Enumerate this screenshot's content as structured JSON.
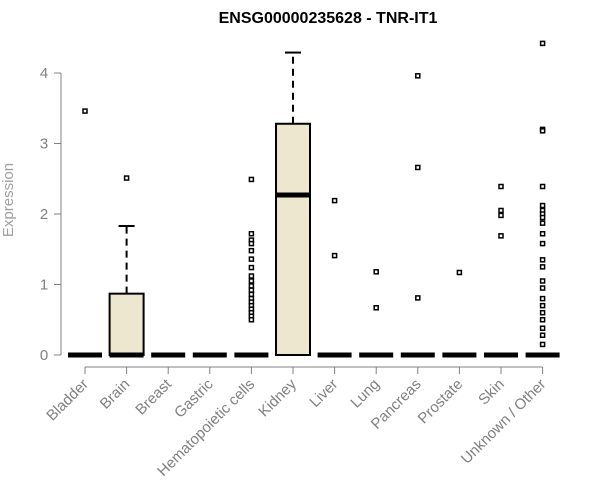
{
  "chart_data": {
    "type": "boxplot",
    "title": "ENSG00000235628 - TNR-IT1",
    "ylabel": "Expression",
    "xlabel": "",
    "ylim": [
      0,
      4.45
    ],
    "yticks": [
      0,
      1,
      2,
      3,
      4
    ],
    "grid": false,
    "legend": "none",
    "box_fill": "#ede7cf",
    "box_stroke": "#000000",
    "categories": [
      "Bladder",
      "Brain",
      "Breast",
      "Gastric",
      "Hematopoietic cells",
      "Kidney",
      "Liver",
      "Lung",
      "Pancreas",
      "Prostate",
      "Skin",
      "Unknown / Other"
    ],
    "boxes": [
      {
        "category": "Bladder",
        "q1": 0,
        "median": 0,
        "q3": 0,
        "whisker_low": 0,
        "whisker_high": 0,
        "outliers": [
          3.46
        ]
      },
      {
        "category": "Brain",
        "q1": 0,
        "median": 0,
        "q3": 0.87,
        "whisker_low": 0,
        "whisker_high": 1.83,
        "outliers": [
          2.51
        ]
      },
      {
        "category": "Breast",
        "q1": 0,
        "median": 0,
        "q3": 0,
        "whisker_low": 0,
        "whisker_high": 0,
        "outliers": []
      },
      {
        "category": "Gastric",
        "q1": 0,
        "median": 0,
        "q3": 0,
        "whisker_low": 0,
        "whisker_high": 0,
        "outliers": []
      },
      {
        "category": "Hematopoietic cells",
        "q1": 0,
        "median": 0,
        "q3": 0,
        "whisker_low": 0,
        "whisker_high": 0,
        "outliers": [
          2.49,
          1.72,
          1.63,
          1.58,
          1.48,
          1.36,
          1.24,
          1.12,
          1.05,
          0.98,
          0.92,
          0.86,
          0.8,
          0.75,
          0.7,
          0.65,
          0.6,
          0.55,
          0.5
        ]
      },
      {
        "category": "Kidney",
        "q1": 0,
        "median": 2.27,
        "q3": 3.28,
        "whisker_low": 0,
        "whisker_high": 4.29,
        "outliers": []
      },
      {
        "category": "Liver",
        "q1": 0,
        "median": 0,
        "q3": 0,
        "whisker_low": 0,
        "whisker_high": 0,
        "outliers": [
          2.19,
          1.41
        ]
      },
      {
        "category": "Lung",
        "q1": 0,
        "median": 0,
        "q3": 0,
        "whisker_low": 0,
        "whisker_high": 0,
        "outliers": [
          1.18,
          0.67
        ]
      },
      {
        "category": "Pancreas",
        "q1": 0,
        "median": 0,
        "q3": 0,
        "whisker_low": 0,
        "whisker_high": 0,
        "outliers": [
          3.96,
          2.66,
          0.81
        ]
      },
      {
        "category": "Prostate",
        "q1": 0,
        "median": 0,
        "q3": 0,
        "whisker_low": 0,
        "whisker_high": 0,
        "outliers": [
          1.17
        ]
      },
      {
        "category": "Skin",
        "q1": 0,
        "median": 0,
        "q3": 0,
        "whisker_low": 0,
        "whisker_high": 0,
        "outliers": [
          2.39,
          2.05,
          1.98,
          1.69
        ]
      },
      {
        "category": "Unknown / Other",
        "q1": 0,
        "median": 0,
        "q3": 0,
        "whisker_low": 0,
        "whisker_high": 0,
        "outliers": [
          4.42,
          3.2,
          3.18,
          2.39,
          2.12,
          2.05,
          2.0,
          1.95,
          1.87,
          1.72,
          1.58,
          1.35,
          1.25,
          1.05,
          0.95,
          0.8,
          0.7,
          0.6,
          0.5,
          0.38,
          0.28,
          0.15
        ]
      }
    ]
  }
}
